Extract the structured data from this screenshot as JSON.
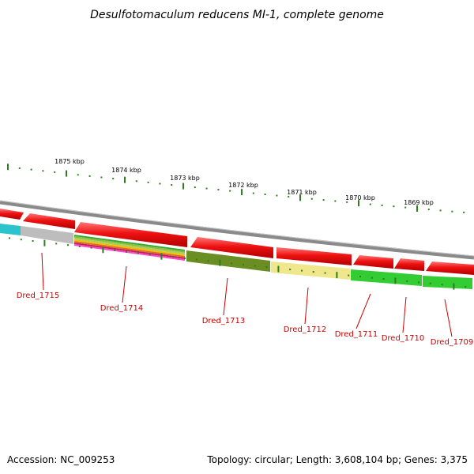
{
  "title": "Desulfotomaculum reducens MI-1, complete genome",
  "footer": {
    "accession": "Accession: NC_009253",
    "summary": "Topology: circular; Length: 3,608,104 bp; Genes: 3,375"
  },
  "scale": {
    "unit": "kbp",
    "labels": [
      "1875 kbp",
      "1874 kbp",
      "1873 kbp",
      "1872 kbp",
      "1871 kbp",
      "1870 kbp",
      "1869 kbp"
    ]
  },
  "genes": [
    {
      "label": "Dred_1715"
    },
    {
      "label": "Dred_1714"
    },
    {
      "label": "Dred_1713"
    },
    {
      "label": "Dred_1712"
    },
    {
      "label": "Dred_1711"
    },
    {
      "label": "Dred_1710"
    },
    {
      "label": "Dred_1709"
    }
  ],
  "colors": {
    "forward_cds": "#ee1111",
    "tick": "#2e7d1e",
    "backbone": "#8a8a8a",
    "label": "#cc0000",
    "cyan": "#2bc4cc",
    "gray": "#bdbdbd",
    "olive": "#6b8e23",
    "khaki": "#f0e68c",
    "green": "#33cc33"
  }
}
